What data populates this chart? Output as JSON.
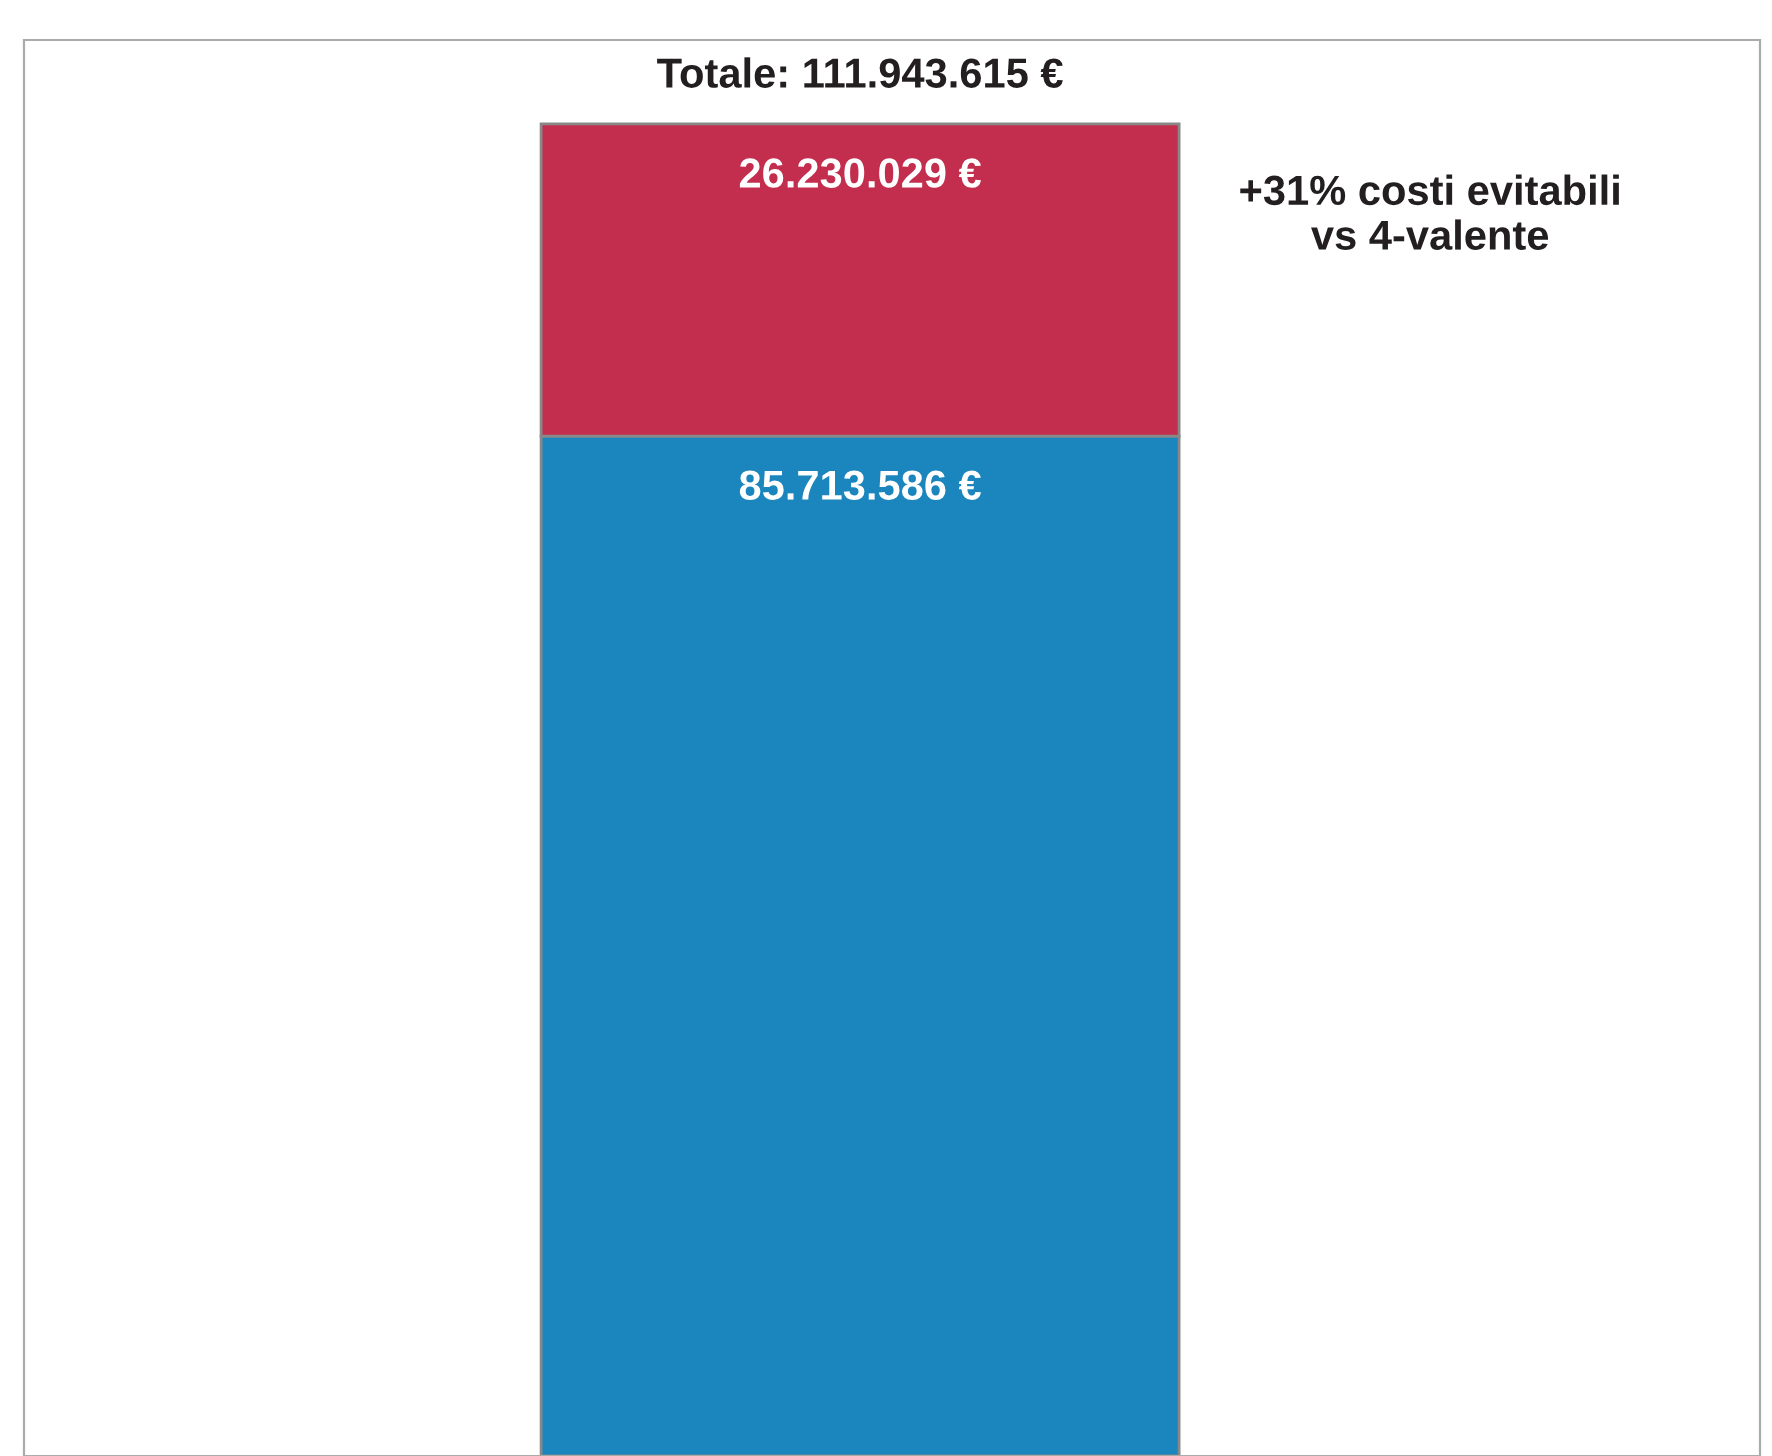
{
  "chart_data": {
    "type": "bar",
    "stacked": true,
    "categories": [
      null
    ],
    "series": [
      {
        "color": "#1b85be",
        "values": [
          85713586
        ],
        "value_labels": [
          "85.713.586 €"
        ]
      },
      {
        "color": "#c32e4e",
        "values": [
          26230029
        ],
        "value_labels": [
          "26.230.029 €"
        ]
      }
    ],
    "totals": [
      "Totale: 111.943.615 €"
    ],
    "annotations": [
      "+31% costi evitabili\nvs 4-valente"
    ],
    "legend": false
  }
}
